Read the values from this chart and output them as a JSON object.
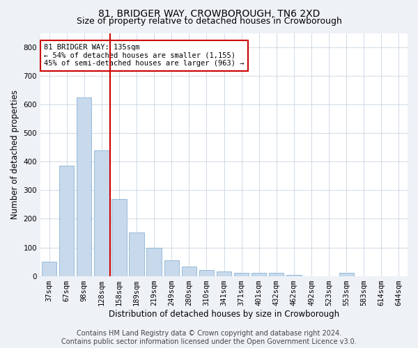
{
  "title": "81, BRIDGER WAY, CROWBOROUGH, TN6 2XD",
  "subtitle": "Size of property relative to detached houses in Crowborough",
  "xlabel": "Distribution of detached houses by size in Crowborough",
  "ylabel": "Number of detached properties",
  "categories": [
    "37sqm",
    "67sqm",
    "98sqm",
    "128sqm",
    "158sqm",
    "189sqm",
    "219sqm",
    "249sqm",
    "280sqm",
    "310sqm",
    "341sqm",
    "371sqm",
    "401sqm",
    "432sqm",
    "462sqm",
    "492sqm",
    "523sqm",
    "553sqm",
    "583sqm",
    "614sqm",
    "644sqm"
  ],
  "values": [
    50,
    385,
    625,
    440,
    270,
    152,
    100,
    55,
    32,
    20,
    15,
    10,
    12,
    10,
    5,
    0,
    0,
    10,
    0,
    0,
    0
  ],
  "bar_color": "#c8d9ec",
  "bar_edge_color": "#8ab4d4",
  "vline_x_index": 3,
  "vline_color": "#cc0000",
  "annotation_text": "81 BRIDGER WAY: 135sqm\n← 54% of detached houses are smaller (1,155)\n45% of semi-detached houses are larger (963) →",
  "annotation_box_color": "#ffffff",
  "annotation_box_edge_color": "#cc0000",
  "ylim": [
    0,
    850
  ],
  "yticks": [
    0,
    100,
    200,
    300,
    400,
    500,
    600,
    700,
    800
  ],
  "footer_text": "Contains HM Land Registry data © Crown copyright and database right 2024.\nContains public sector information licensed under the Open Government Licence v3.0.",
  "background_color": "#eef2f7",
  "plot_background_color": "#ffffff",
  "grid_color": "#c8d4e0",
  "title_fontsize": 10,
  "subtitle_fontsize": 9,
  "axis_label_fontsize": 8.5,
  "tick_fontsize": 7.5,
  "annotation_fontsize": 7.5,
  "footer_fontsize": 7
}
